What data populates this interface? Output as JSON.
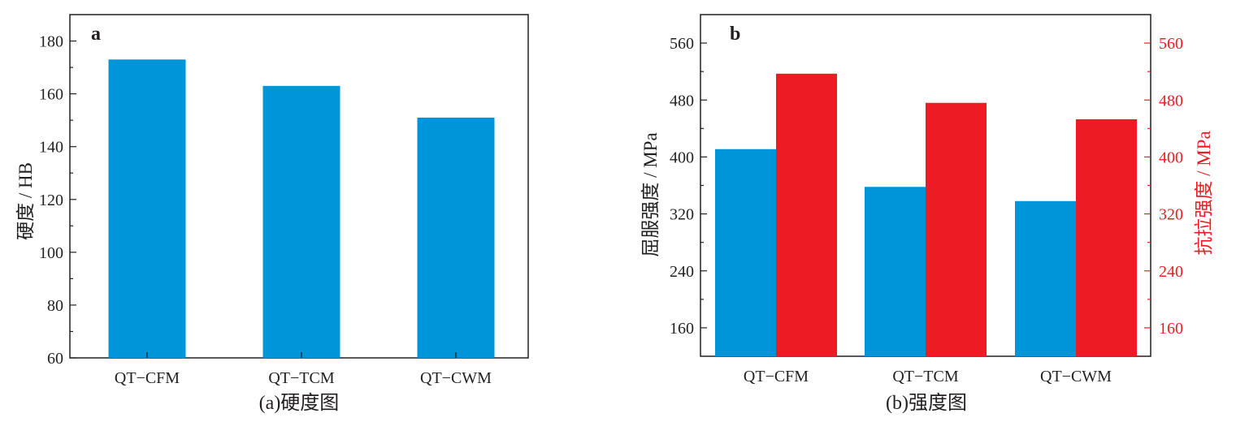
{
  "chart_data": [
    {
      "type": "bar",
      "panel_label": "a",
      "caption": "(a)硬度图",
      "categories": [
        "QT−CFM",
        "QT−TCM",
        "QT−CWM"
      ],
      "series": [
        {
          "values": [
            173,
            163,
            151
          ],
          "color": "#0094d9"
        }
      ],
      "ylabel": "硬度 / HB",
      "ylim": [
        60,
        190
      ],
      "yticks": [
        60,
        80,
        100,
        120,
        140,
        160,
        180
      ],
      "grid": false
    },
    {
      "type": "bar",
      "panel_label": "b",
      "caption": "(b)强度图",
      "categories": [
        "QT−CFM",
        "QT−TCM",
        "QT−CWM"
      ],
      "series": [
        {
          "values": [
            411,
            358,
            338
          ],
          "color": "#0094d9",
          "axis": "left"
        },
        {
          "values": [
            517,
            476,
            453
          ],
          "color": "#ed1c24",
          "axis": "right"
        }
      ],
      "ylabel": "屈服强度 / MPa",
      "ylabel_right": "抗拉强度 / MPa",
      "ylim": [
        120,
        600
      ],
      "yticks": [
        160,
        240,
        320,
        400,
        480,
        560
      ],
      "grid": false
    }
  ]
}
